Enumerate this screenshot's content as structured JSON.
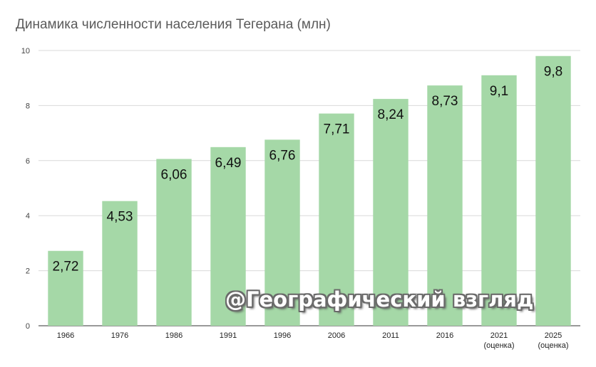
{
  "chart_data": {
    "type": "bar",
    "title": "Динамика численности населения Тегерана (млн)",
    "categories": [
      "1966",
      "1976",
      "1986",
      "1991",
      "1996",
      "2006",
      "2011",
      "2016",
      "2021",
      "2025"
    ],
    "category_sublabels": [
      "",
      "",
      "",
      "",
      "",
      "",
      "",
      "",
      "(оценка)",
      "(оценка)"
    ],
    "values": [
      2.72,
      4.53,
      6.06,
      6.49,
      6.76,
      7.71,
      8.24,
      8.73,
      9.1,
      9.8
    ],
    "data_labels": [
      "2,72",
      "4,53",
      "6,06",
      "6,49",
      "6,76",
      "7,71",
      "8,24",
      "8,73",
      "9,1",
      "9,8"
    ],
    "ylim": [
      0,
      10
    ],
    "yticks": [
      0,
      2,
      4,
      6,
      8,
      10
    ],
    "xlabel": "",
    "ylabel": "",
    "grid": true,
    "bar_color": "#a5d8a7",
    "grid_color": "#d9d9d9"
  },
  "watermark": "@Географический взгляд"
}
